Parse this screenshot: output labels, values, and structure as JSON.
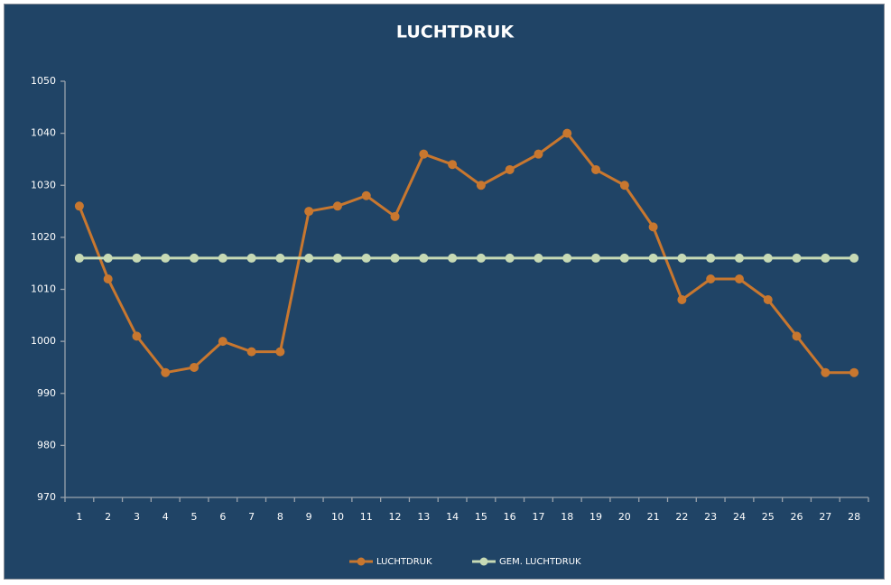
{
  "chart_data": {
    "type": "line",
    "title": "LUCHTDRUK",
    "categories": [
      "1",
      "2",
      "3",
      "4",
      "5",
      "6",
      "7",
      "8",
      "9",
      "10",
      "11",
      "12",
      "13",
      "14",
      "15",
      "16",
      "17",
      "18",
      "19",
      "20",
      "21",
      "22",
      "23",
      "24",
      "25",
      "26",
      "27",
      "28"
    ],
    "series": [
      {
        "name": "LUCHTDRUK",
        "color": "#c8772f",
        "values": [
          1026,
          1012,
          1001,
          994,
          995,
          1000,
          998,
          998,
          1025,
          1026,
          1028,
          1024,
          1036,
          1034,
          1030,
          1033,
          1036,
          1040,
          1033,
          1030,
          1022,
          1008,
          1012,
          1012,
          1008,
          1001,
          994,
          994
        ]
      },
      {
        "name": "GEM. LUCHTDRUK",
        "color": "#c7dab5",
        "values": [
          1016,
          1016,
          1016,
          1016,
          1016,
          1016,
          1016,
          1016,
          1016,
          1016,
          1016,
          1016,
          1016,
          1016,
          1016,
          1016,
          1016,
          1016,
          1016,
          1016,
          1016,
          1016,
          1016,
          1016,
          1016,
          1016,
          1016,
          1016
        ]
      }
    ],
    "ylim": [
      970,
      1050
    ],
    "yticks": [
      970,
      980,
      990,
      1000,
      1010,
      1020,
      1030,
      1040,
      1050
    ],
    "grid": false,
    "legend": "bottom"
  }
}
